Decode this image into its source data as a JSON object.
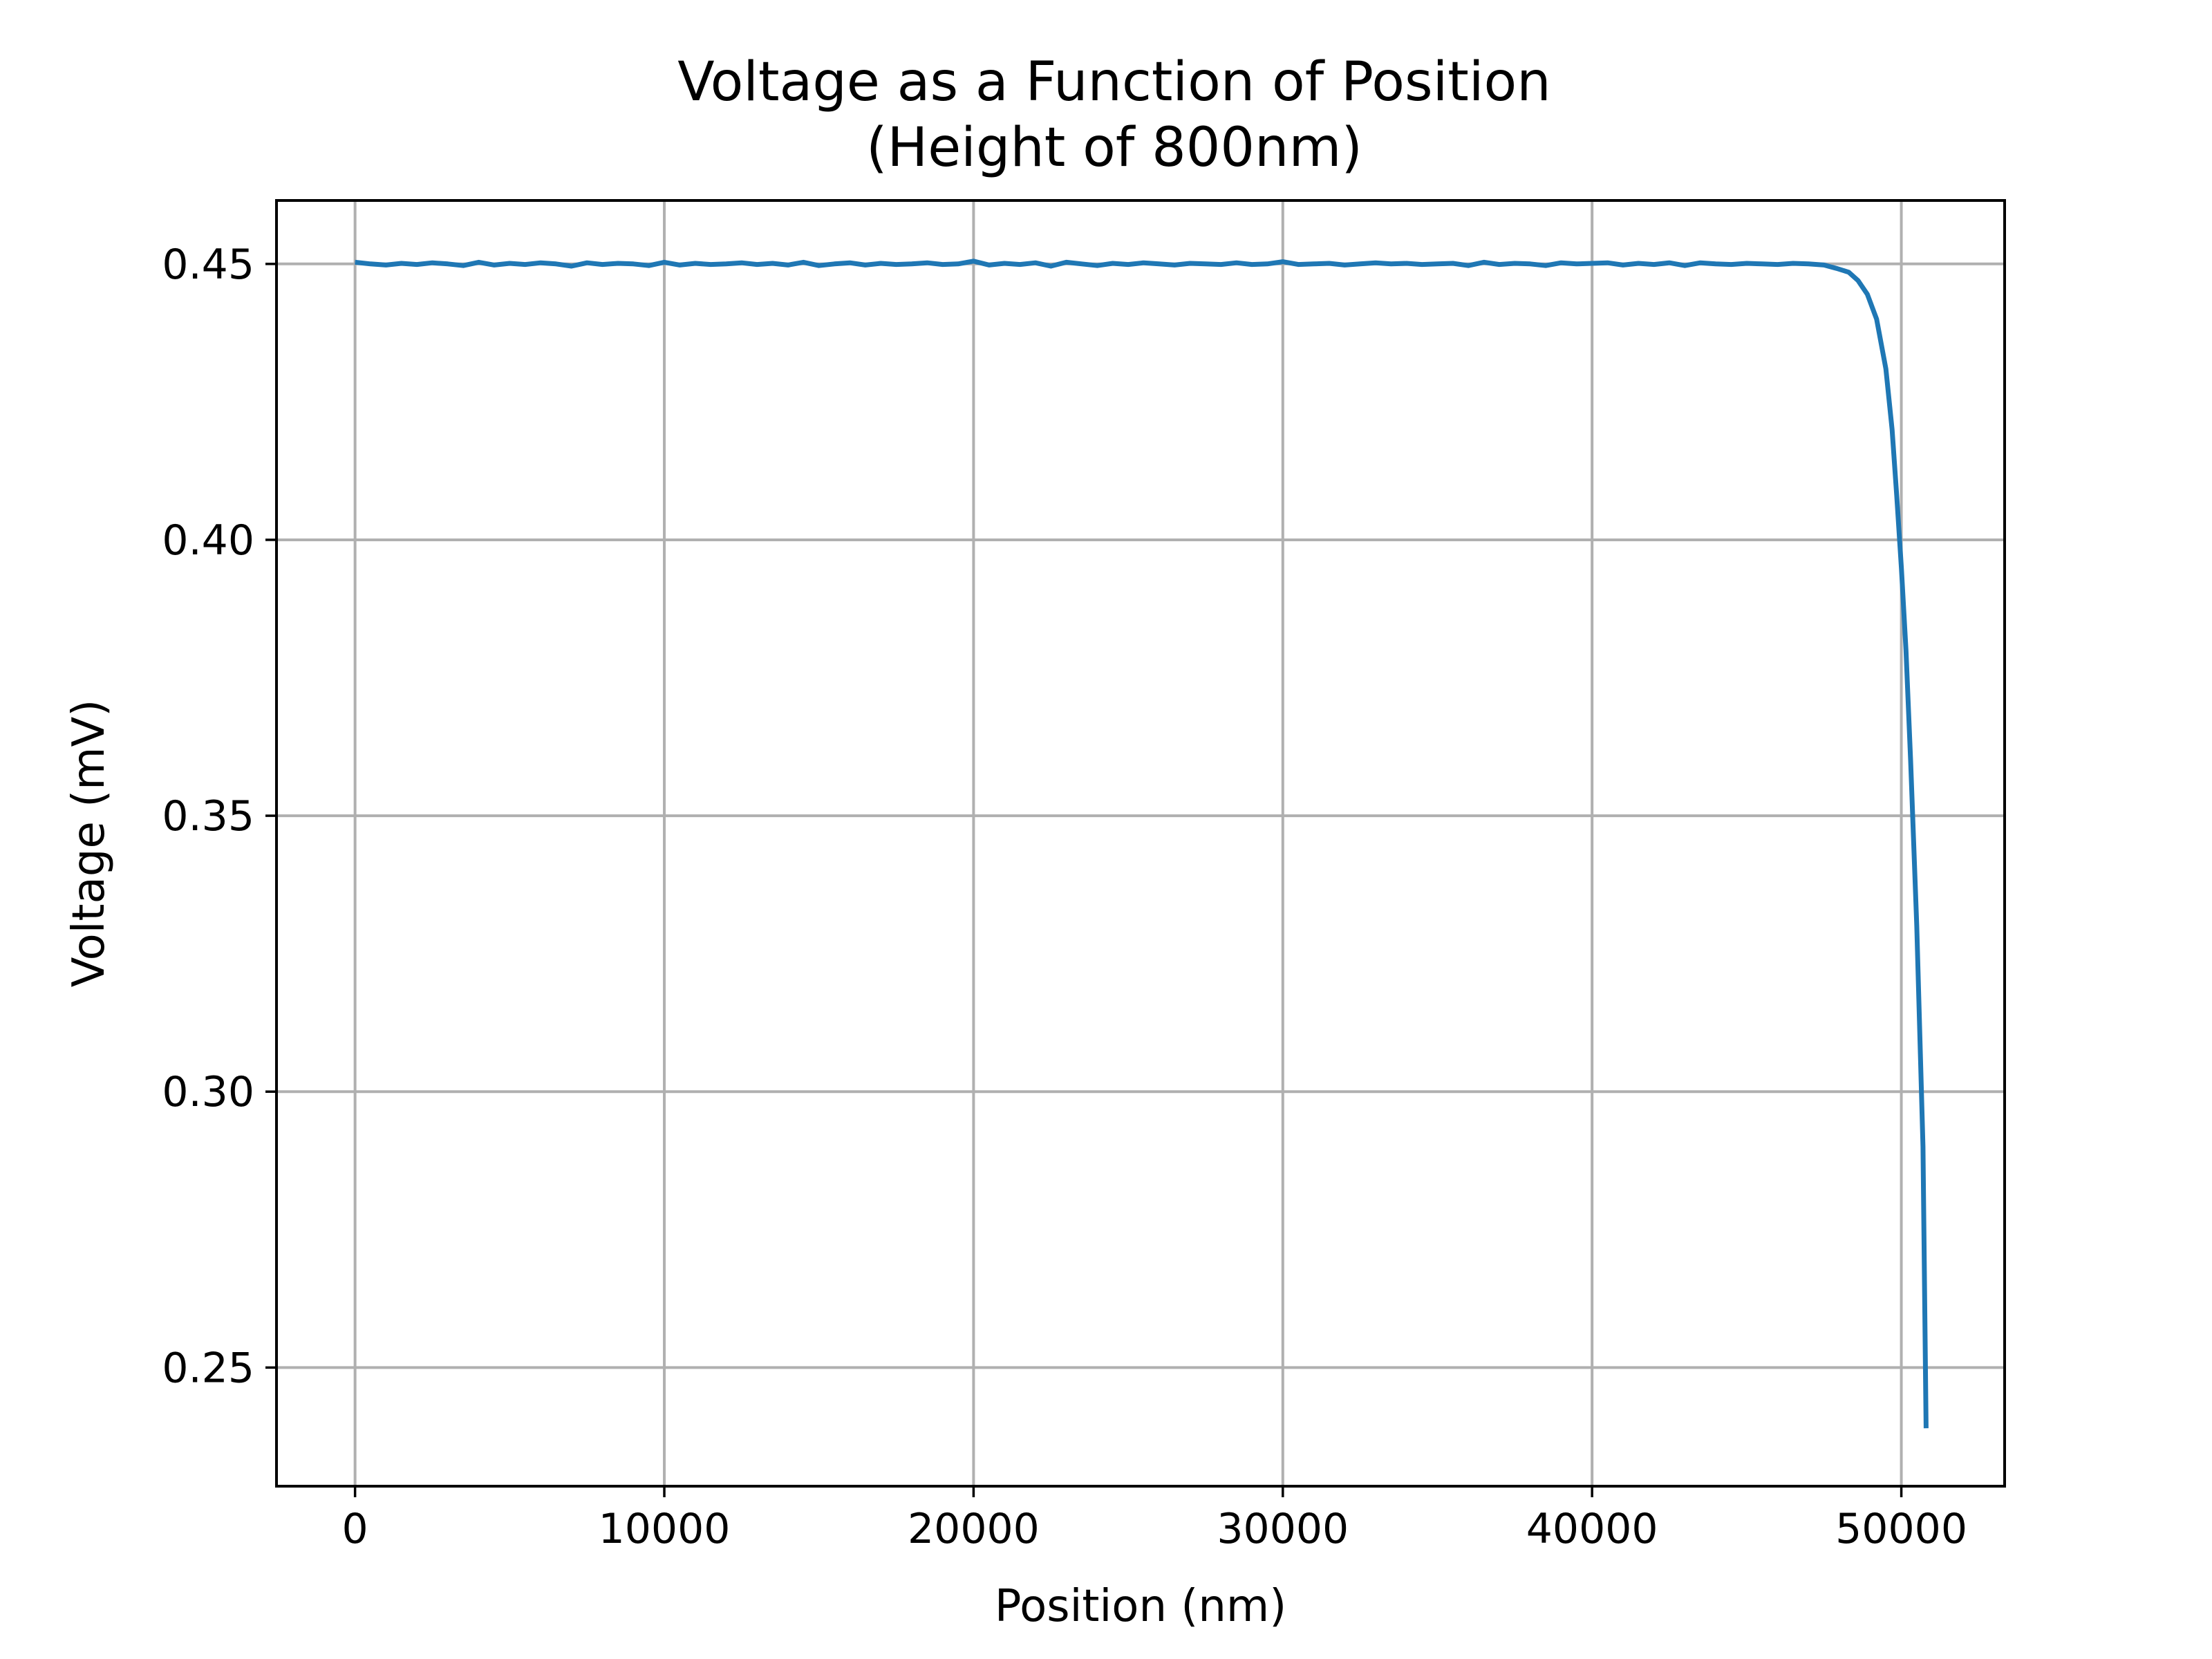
{
  "chart_data": {
    "type": "line",
    "title": "Voltage as a Function of Position",
    "subtitle": "(Height of 800nm)",
    "xlabel": "Position (nm)",
    "ylabel": "Voltage (mV)",
    "xlim": [
      -2540,
      53340
    ],
    "ylim": [
      0.2285,
      0.4615
    ],
    "grid": true,
    "x_ticks": [
      {
        "value": 0,
        "label": "0"
      },
      {
        "value": 10000,
        "label": "10000"
      },
      {
        "value": 20000,
        "label": "20000"
      },
      {
        "value": 30000,
        "label": "30000"
      },
      {
        "value": 40000,
        "label": "40000"
      },
      {
        "value": 50000,
        "label": "50000"
      }
    ],
    "y_ticks": [
      {
        "value": 0.25,
        "label": "0.25"
      },
      {
        "value": 0.3,
        "label": "0.30"
      },
      {
        "value": 0.35,
        "label": "0.35"
      },
      {
        "value": 0.4,
        "label": "0.40"
      },
      {
        "value": 0.45,
        "label": "0.45"
      }
    ],
    "series": [
      {
        "color": "#1f77b4",
        "x": [
          0,
          500,
          1000,
          1500,
          2000,
          2500,
          3000,
          3500,
          4000,
          4500,
          5000,
          5500,
          6000,
          6500,
          7000,
          7500,
          8000,
          8500,
          9000,
          9500,
          10000,
          10500,
          11000,
          11500,
          12000,
          12500,
          13000,
          13500,
          14000,
          14500,
          15000,
          15500,
          16000,
          16500,
          17000,
          17500,
          18000,
          18500,
          19000,
          19500,
          20000,
          20500,
          21000,
          21500,
          22000,
          22500,
          23000,
          23500,
          24000,
          24500,
          25000,
          25500,
          26000,
          26500,
          27000,
          27500,
          28000,
          28500,
          29000,
          29500,
          30000,
          30500,
          31000,
          31500,
          32000,
          32500,
          33000,
          33500,
          34000,
          34500,
          35000,
          35500,
          36000,
          36500,
          37000,
          37500,
          38000,
          38500,
          39000,
          39500,
          40000,
          40500,
          41000,
          41500,
          42000,
          42500,
          43000,
          43500,
          44000,
          44500,
          45000,
          45500,
          46000,
          46500,
          47000,
          47500,
          47900,
          48300,
          48600,
          48900,
          49200,
          49500,
          49700,
          49850,
          50000,
          50150,
          50300,
          50500,
          50700,
          50800
        ],
        "y": [
          0.4503,
          0.45,
          0.4498,
          0.4501,
          0.4499,
          0.4502,
          0.45,
          0.4497,
          0.4503,
          0.4498,
          0.4501,
          0.4499,
          0.4502,
          0.45,
          0.4496,
          0.4502,
          0.4499,
          0.4501,
          0.45,
          0.4497,
          0.4503,
          0.4498,
          0.4501,
          0.4499,
          0.45,
          0.4502,
          0.4499,
          0.4501,
          0.4498,
          0.4503,
          0.4497,
          0.45,
          0.4502,
          0.4498,
          0.4501,
          0.4499,
          0.45,
          0.4502,
          0.4499,
          0.45,
          0.4505,
          0.4498,
          0.4501,
          0.4499,
          0.4502,
          0.4496,
          0.4503,
          0.45,
          0.4497,
          0.4501,
          0.4499,
          0.4502,
          0.45,
          0.4498,
          0.4501,
          0.45,
          0.4499,
          0.4502,
          0.4499,
          0.45,
          0.4504,
          0.4499,
          0.45,
          0.4501,
          0.4498,
          0.45,
          0.4502,
          0.45,
          0.4501,
          0.4499,
          0.45,
          0.4501,
          0.4497,
          0.4503,
          0.4499,
          0.4501,
          0.45,
          0.4497,
          0.4502,
          0.45,
          0.4501,
          0.4502,
          0.4498,
          0.4501,
          0.4499,
          0.4502,
          0.4497,
          0.4502,
          0.45,
          0.4499,
          0.4501,
          0.45,
          0.4499,
          0.4501,
          0.45,
          0.4498,
          0.4492,
          0.4485,
          0.447,
          0.4445,
          0.44,
          0.431,
          0.42,
          0.408,
          0.395,
          0.38,
          0.36,
          0.33,
          0.29,
          0.239
        ]
      }
    ]
  }
}
